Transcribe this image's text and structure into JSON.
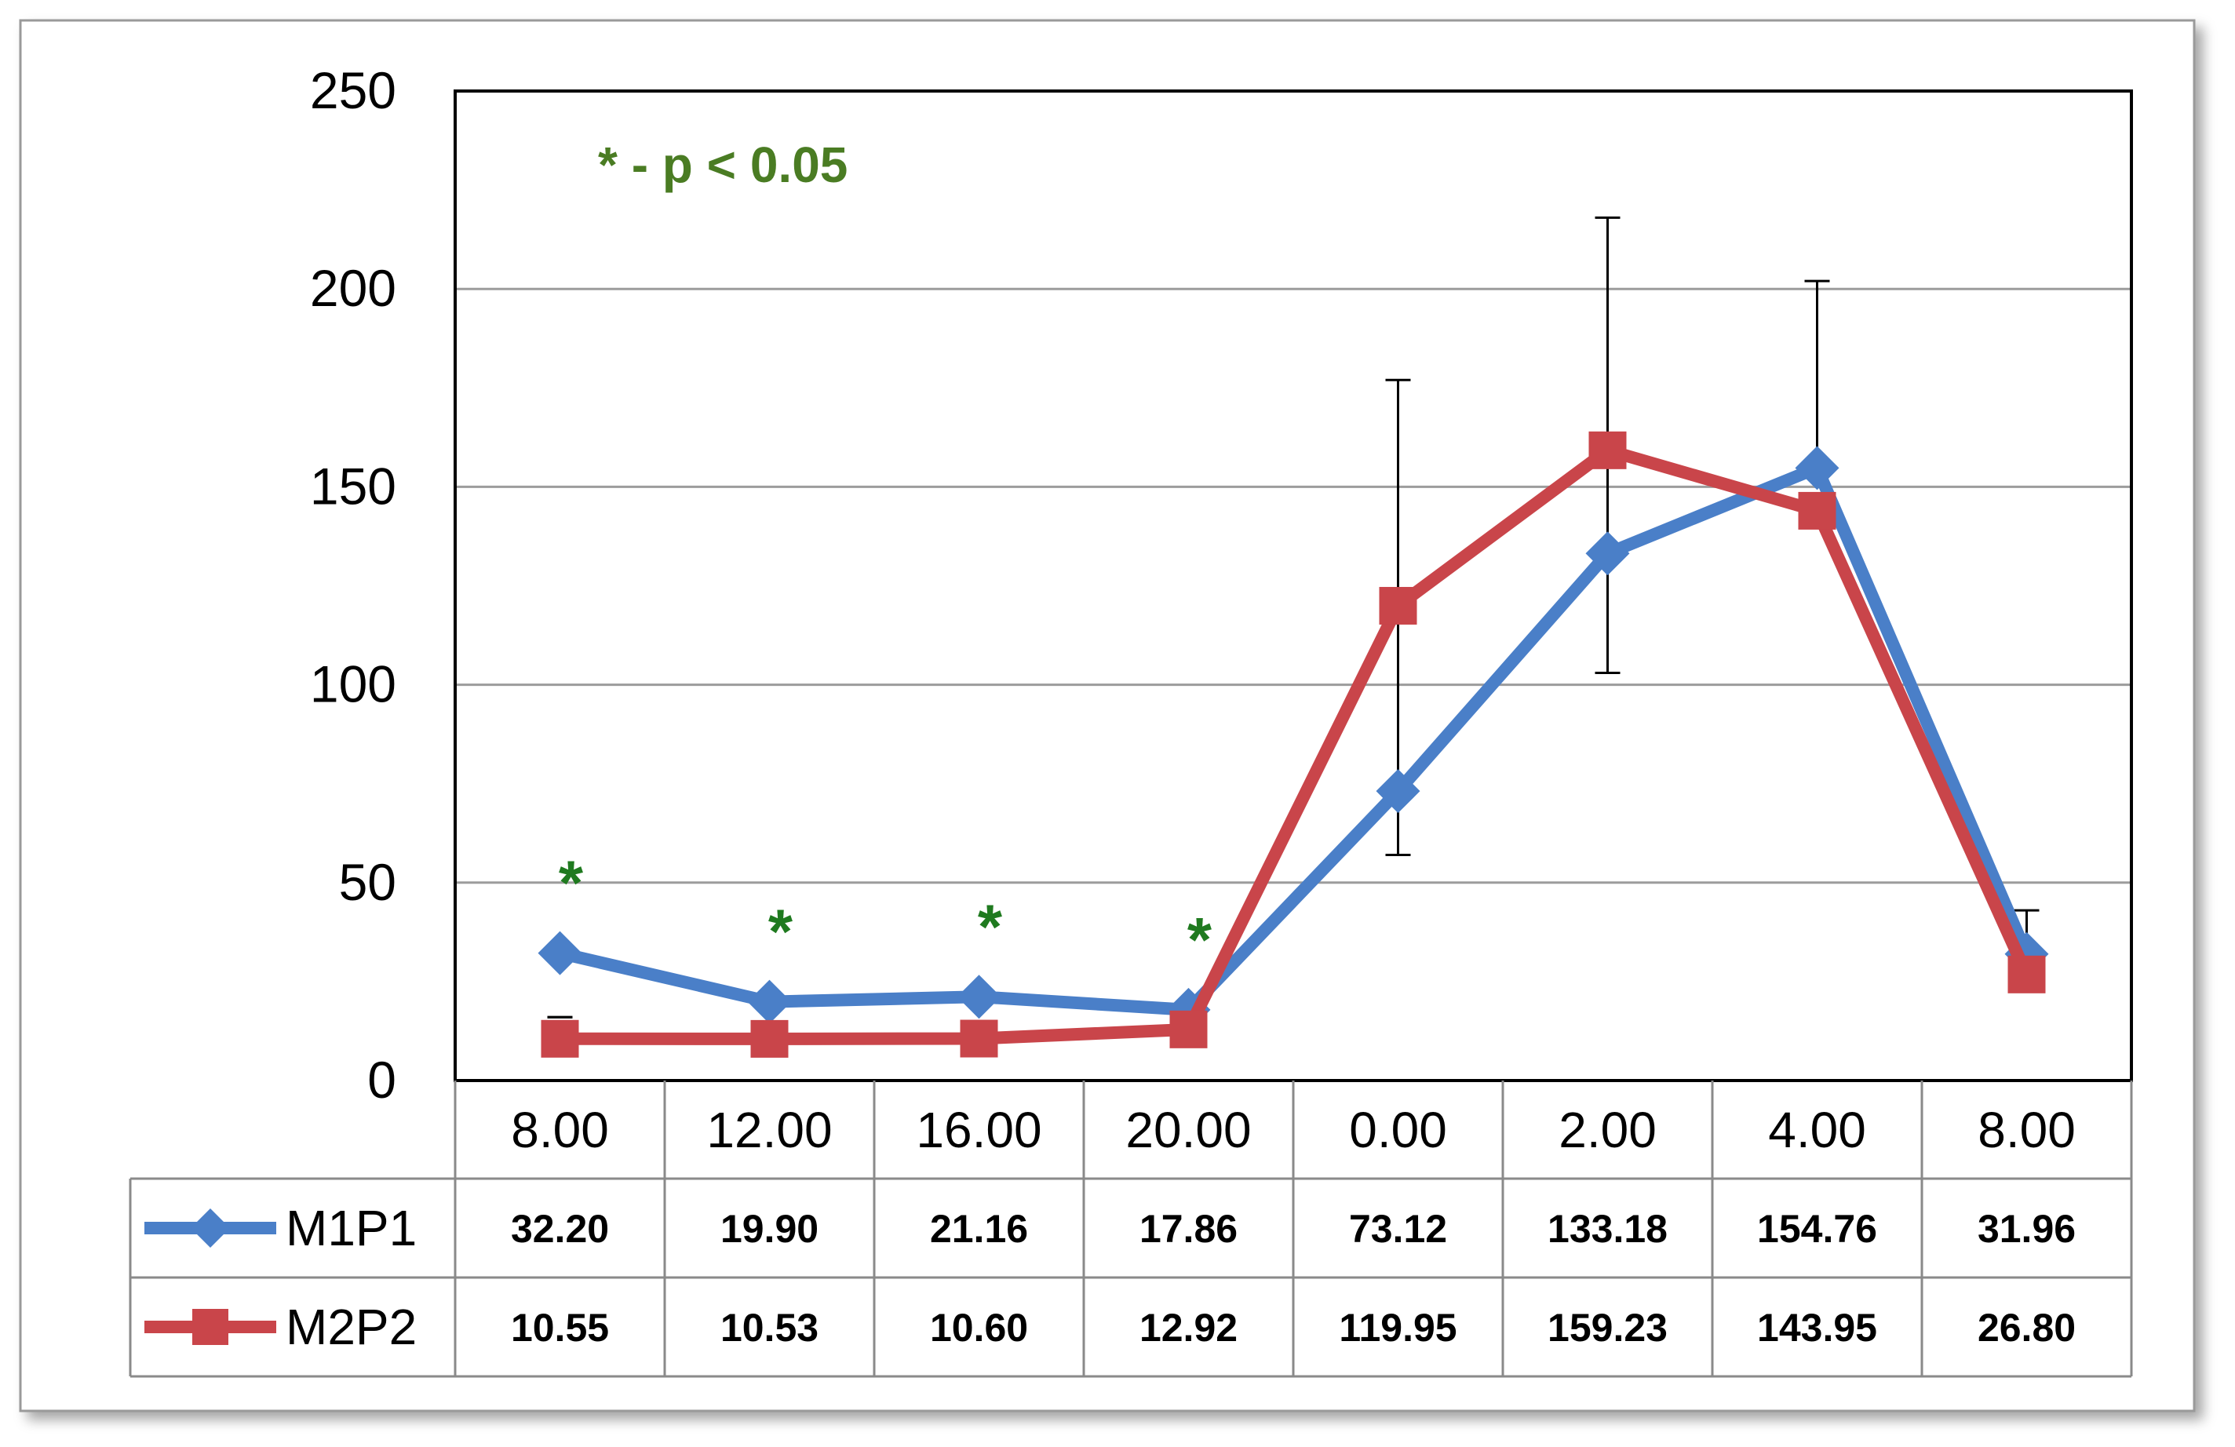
{
  "chart_data": {
    "type": "line",
    "categories": [
      "8.00",
      "12.00",
      "16.00",
      "20.00",
      "0.00",
      "2.00",
      "4.00",
      "8.00"
    ],
    "ylim": [
      0,
      250
    ],
    "yticks": [
      "0",
      "50",
      "100",
      "150",
      "200",
      "250"
    ],
    "grid": true,
    "legend": "data table below plot",
    "annotation": "* - p < 0.05",
    "annotation_color": "#4a7c23",
    "significance_marker": "*",
    "significance_color": "#1f7a1f",
    "significant_categories": [
      0,
      1,
      2,
      3
    ],
    "series": [
      {
        "name": "M1P1",
        "color": "#4a7fc8",
        "marker": "diamond",
        "values": [
          32.2,
          19.9,
          21.16,
          17.86,
          73.12,
          133.18,
          154.76,
          31.96
        ],
        "labels": [
          "32.20",
          "19.90",
          "21.16",
          "17.86",
          "73.12",
          "133.18",
          "154.76",
          "31.96"
        ]
      },
      {
        "name": "M2P2",
        "color": "#c9454a",
        "marker": "square",
        "values": [
          10.55,
          10.53,
          10.6,
          12.92,
          119.95,
          159.23,
          143.95,
          26.8
        ],
        "labels": [
          "10.55",
          "10.53",
          "10.60",
          "12.92",
          "119.95",
          "159.23",
          "143.95",
          "26.80"
        ]
      }
    ],
    "error_bars": [
      {
        "index": 0,
        "low": 16,
        "high": 16
      },
      {
        "index": 4,
        "low": 57,
        "high": 177
      },
      {
        "index": 5,
        "low": 103,
        "high": 218
      },
      {
        "index": 6,
        "high": 202
      },
      {
        "index": 7,
        "high": 43
      }
    ]
  }
}
